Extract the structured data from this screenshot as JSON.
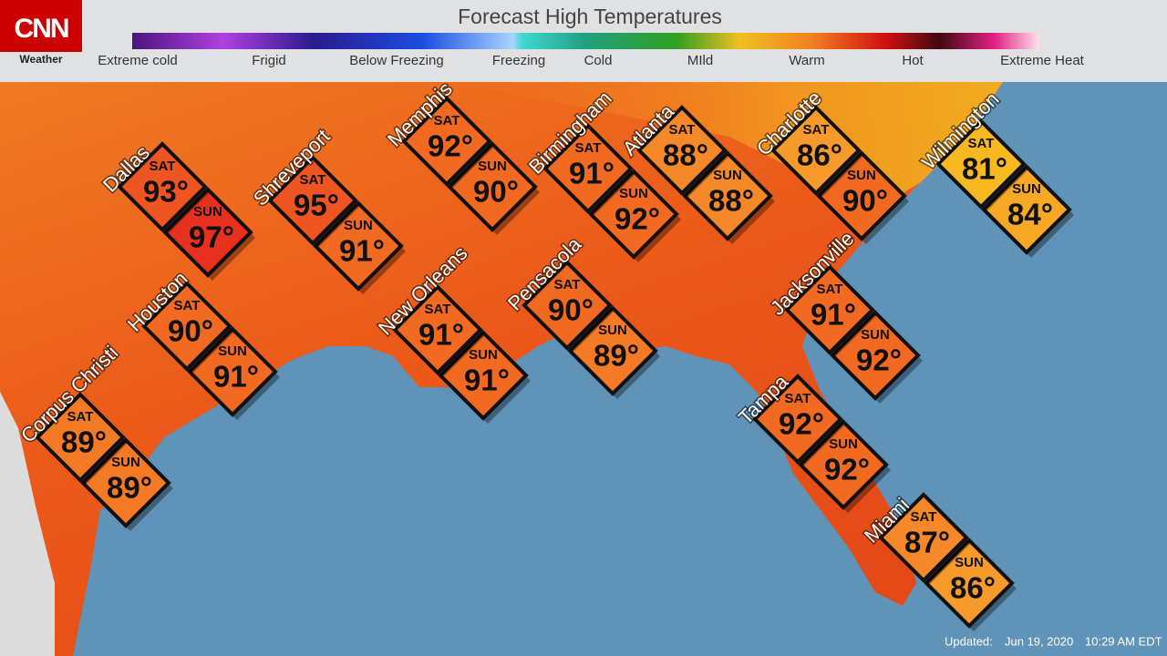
{
  "header": {
    "logo": "CNN",
    "section": "Weather",
    "title": "Forecast High Temperatures",
    "legend": [
      "Extreme cold",
      "Frigid",
      "Below Freezing",
      "Freezing",
      "Cold",
      "MIld",
      "Warm",
      "Hot",
      "Extreme Heat"
    ]
  },
  "cities": [
    {
      "name": "Dallas",
      "sat": {
        "day": "SAT",
        "temp": "93°",
        "color": "#ee5522"
      },
      "sun": {
        "day": "SUN",
        "temp": "97°",
        "color": "#e8301e"
      }
    },
    {
      "name": "Shreveport",
      "sat": {
        "day": "SAT",
        "temp": "95°",
        "color": "#ee5522"
      },
      "sun": {
        "day": "SUN",
        "temp": "91°",
        "color": "#f26a22"
      }
    },
    {
      "name": "Memphis",
      "sat": {
        "day": "SAT",
        "temp": "92°",
        "color": "#f26a22"
      },
      "sun": {
        "day": "SUN",
        "temp": "90°",
        "color": "#f26a22"
      }
    },
    {
      "name": "Birmingham",
      "sat": {
        "day": "SAT",
        "temp": "91°",
        "color": "#f26a22"
      },
      "sun": {
        "day": "SUN",
        "temp": "92°",
        "color": "#f26a22"
      }
    },
    {
      "name": "Atlanta",
      "sat": {
        "day": "SAT",
        "temp": "88°",
        "color": "#f5892a"
      },
      "sun": {
        "day": "SUN",
        "temp": "88°",
        "color": "#f5892a"
      }
    },
    {
      "name": "Charlotte",
      "sat": {
        "day": "SAT",
        "temp": "86°",
        "color": "#f79a2c"
      },
      "sun": {
        "day": "SUN",
        "temp": "90°",
        "color": "#f26a22"
      }
    },
    {
      "name": "Wilmington",
      "sat": {
        "day": "SAT",
        "temp": "81°",
        "color": "#f8b820"
      },
      "sun": {
        "day": "SUN",
        "temp": "84°",
        "color": "#f7a824"
      }
    },
    {
      "name": "Houston",
      "sat": {
        "day": "SAT",
        "temp": "90°",
        "color": "#f26a22"
      },
      "sun": {
        "day": "SUN",
        "temp": "91°",
        "color": "#f26a22"
      }
    },
    {
      "name": "New Orleans",
      "sat": {
        "day": "SAT",
        "temp": "91°",
        "color": "#f26a22"
      },
      "sun": {
        "day": "SUN",
        "temp": "91°",
        "color": "#f26a22"
      }
    },
    {
      "name": "Pensacola",
      "sat": {
        "day": "SAT",
        "temp": "90°",
        "color": "#f26a22"
      },
      "sun": {
        "day": "SUN",
        "temp": "89°",
        "color": "#f47a26"
      }
    },
    {
      "name": "Jacksonville",
      "sat": {
        "day": "SAT",
        "temp": "91°",
        "color": "#f26a22"
      },
      "sun": {
        "day": "SUN",
        "temp": "92°",
        "color": "#f26a22"
      }
    },
    {
      "name": "Corpus Christi",
      "sat": {
        "day": "SAT",
        "temp": "89°",
        "color": "#f47a26"
      },
      "sun": {
        "day": "SUN",
        "temp": "89°",
        "color": "#f47a26"
      }
    },
    {
      "name": "Tampa",
      "sat": {
        "day": "SAT",
        "temp": "92°",
        "color": "#f26a22"
      },
      "sun": {
        "day": "SUN",
        "temp": "92°",
        "color": "#f26a22"
      }
    },
    {
      "name": "Miami",
      "sat": {
        "day": "SAT",
        "temp": "87°",
        "color": "#f5892a"
      },
      "sun": {
        "day": "SUN",
        "temp": "86°",
        "color": "#f79a2c"
      }
    }
  ],
  "footer": {
    "updated": "Updated:",
    "date": "Jun 19, 2020",
    "time": "10:29 AM EDT"
  }
}
